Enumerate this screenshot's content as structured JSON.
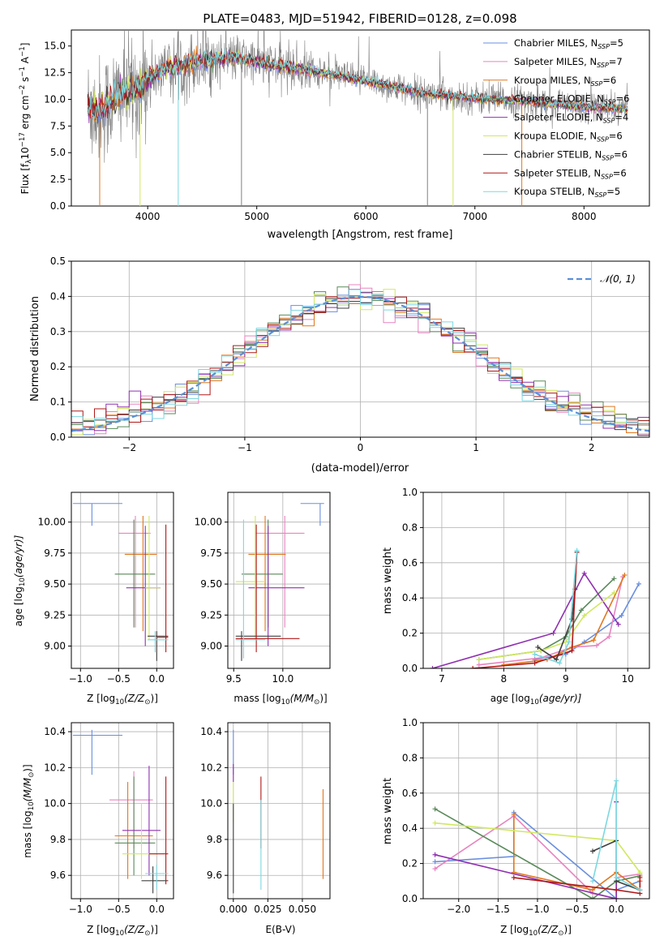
{
  "colors": {
    "cm": "#6a8fe0",
    "sm": "#e884c0",
    "km": "#e07820",
    "ce": "#5a8a5a",
    "se": "#9030b0",
    "ke": "#d0e860",
    "cs": "#404040",
    "ss": "#b01818",
    "ks": "#7cd8e0",
    "obs": "#808080",
    "gauss": "#5a8fd8"
  },
  "chart_data": [
    {
      "id": "spectrum",
      "type": "line",
      "title": "PLATE=0483, MJD=51942, FIBERID=0128, z=0.098",
      "xlabel": "wavelength [Angstrom, rest frame]",
      "ylabel_parts": [
        "Flux [f",
        "λ",
        "10",
        "−17",
        " erg cm",
        "−2",
        " s",
        "−1",
        " A",
        "−1",
        "]"
      ],
      "xlim": [
        3300,
        8600
      ],
      "ylim": [
        0,
        16.5
      ],
      "xticks": [
        4000,
        5000,
        6000,
        7000,
        8000
      ],
      "yticks": [
        0.0,
        2.5,
        5.0,
        7.5,
        10.0,
        12.5,
        15.0
      ],
      "ytick_labels": [
        "0.0",
        "2.5",
        "5.0",
        "7.5",
        "10.0",
        "12.5",
        "15.0"
      ],
      "continuum": [
        [
          3450,
          9.2
        ],
        [
          3550,
          8.8
        ],
        [
          3650,
          9.6
        ],
        [
          3750,
          10.6
        ],
        [
          3900,
          10.8
        ],
        [
          4000,
          12.0
        ],
        [
          4200,
          12.9
        ],
        [
          4500,
          13.7
        ],
        [
          4800,
          13.9
        ],
        [
          5100,
          13.3
        ],
        [
          5500,
          12.7
        ],
        [
          6000,
          11.7
        ],
        [
          6500,
          10.6
        ],
        [
          7000,
          10.1
        ],
        [
          7500,
          9.8
        ],
        [
          8000,
          9.3
        ],
        [
          8400,
          9.1
        ]
      ],
      "legend": [
        {
          "key": "cm",
          "label": "Chabrier MILES, N",
          "sub": "SSP",
          "val": "=5"
        },
        {
          "key": "sm",
          "label": "Salpeter MILES, N",
          "sub": "SSP",
          "val": "=7"
        },
        {
          "key": "km",
          "label": "Kroupa MILES, N",
          "sub": "SSP",
          "val": "=6"
        },
        {
          "key": "ce",
          "label": "Chabrier ELODIE, N",
          "sub": "SSP",
          "val": "=6"
        },
        {
          "key": "se",
          "label": "Salpeter ELODIE, N",
          "sub": "SSP",
          "val": "=4"
        },
        {
          "key": "ke",
          "label": "Kroupa ELODIE, N",
          "sub": "SSP",
          "val": "=6"
        },
        {
          "key": "cs",
          "label": "Chabrier STELIB, N",
          "sub": "SSP",
          "val": "=6"
        },
        {
          "key": "ss",
          "label": "Salpeter STELIB, N",
          "sub": "SSP",
          "val": "=6"
        },
        {
          "key": "ks",
          "label": "Kroupa STELIB, N",
          "sub": "SSP",
          "val": "=5"
        }
      ]
    },
    {
      "id": "residuals",
      "type": "step",
      "xlabel": "(data-model)/error",
      "ylabel": "Normed distribution",
      "xlim": [
        -2.5,
        2.5
      ],
      "ylim": [
        0,
        0.5
      ],
      "xticks": [
        -2,
        -1,
        0,
        1,
        2
      ],
      "xtick_labels": [
        "−2",
        "−1",
        "0",
        "1",
        "2"
      ],
      "yticks": [
        0.0,
        0.1,
        0.2,
        0.3,
        0.4,
        0.5
      ],
      "ytick_labels": [
        "0.0",
        "0.1",
        "0.2",
        "0.3",
        "0.4",
        "0.5"
      ],
      "bin_width": 0.1,
      "gaussian_label": "𝒩(0, 1)"
    },
    {
      "id": "age_vs_Z",
      "type": "errorbar",
      "xlabel_parts": [
        "Z [log",
        "10",
        "(Z/Z",
        "⊙",
        ")]"
      ],
      "ylabel_parts": [
        "age  [log",
        "10",
        "(age/yr)]"
      ],
      "xlim": [
        -1.12,
        0.22
      ],
      "ylim": [
        8.82,
        10.24
      ],
      "xticks": [
        -1.0,
        -0.5,
        0.0
      ],
      "xtick_labels": [
        "−1.0",
        "−0.5",
        "0.0"
      ],
      "yticks": [
        9.0,
        9.25,
        9.5,
        9.75,
        10.0
      ],
      "ytick_labels": [
        "9.00",
        "9.25",
        "9.50",
        "9.75",
        "10.00"
      ],
      "points": [
        {
          "c": "cm",
          "x": -0.85,
          "xlo": -1.1,
          "xhi": -0.45,
          "y": 10.15,
          "ylo": 9.97,
          "yhi": 10.15
        },
        {
          "c": "sm",
          "x": -0.28,
          "xlo": -0.5,
          "xhi": -0.08,
          "y": 9.91,
          "ylo": 9.15,
          "yhi": 10.05
        },
        {
          "c": "km",
          "x": -0.18,
          "xlo": -0.42,
          "xhi": 0.0,
          "y": 9.74,
          "ylo": 9.12,
          "yhi": 10.05
        },
        {
          "c": "ce",
          "x": -0.3,
          "xlo": -0.55,
          "xhi": -0.02,
          "y": 9.58,
          "ylo": 9.15,
          "yhi": 10.02
        },
        {
          "c": "se",
          "x": -0.15,
          "xlo": -0.4,
          "xhi": 0.05,
          "y": 9.47,
          "ylo": 9.0,
          "yhi": 9.97
        },
        {
          "c": "ke",
          "x": -0.1,
          "xlo": -0.15,
          "xhi": 0.05,
          "y": 9.47,
          "ylo": 9.05,
          "yhi": 10.05
        },
        {
          "c": "cs",
          "x": 0.0,
          "xlo": -0.12,
          "xhi": 0.15,
          "y": 9.08,
          "ylo": 8.88,
          "yhi": 9.12
        },
        {
          "c": "ss",
          "x": 0.12,
          "xlo": 0.0,
          "xhi": 0.15,
          "y": 9.07,
          "ylo": 8.95,
          "yhi": 9.98
        },
        {
          "c": "ks",
          "x": -0.02,
          "xlo": -0.12,
          "xhi": 0.15,
          "y": 9.05,
          "ylo": 8.95,
          "yhi": 9.12
        }
      ]
    },
    {
      "id": "age_vs_mass",
      "type": "errorbar",
      "xlabel_parts": [
        "mass [log",
        "10",
        "(M/M",
        "⊙",
        ")]"
      ],
      "xlim": [
        9.44,
        10.48
      ],
      "ylim": [
        8.82,
        10.24
      ],
      "xticks": [
        9.5,
        10.0
      ],
      "xtick_labels": [
        "9.5",
        "10.0"
      ],
      "yticks": [
        9.0,
        9.25,
        9.5,
        9.75,
        10.0
      ],
      "ytick_labels": [
        "9.00",
        "9.25",
        "9.50",
        "9.75",
        "10.00"
      ],
      "points": [
        {
          "c": "cm",
          "x": 10.38,
          "xlo": 10.18,
          "xhi": 10.42,
          "y": 10.15,
          "ylo": 9.97,
          "yhi": 10.15
        },
        {
          "c": "sm",
          "x": 10.02,
          "xlo": 9.72,
          "xhi": 10.22,
          "y": 9.91,
          "ylo": 9.15,
          "yhi": 10.05
        },
        {
          "c": "km",
          "x": 9.82,
          "xlo": 9.65,
          "xhi": 10.03,
          "y": 9.74,
          "ylo": 9.12,
          "yhi": 10.05
        },
        {
          "c": "ce",
          "x": 9.85,
          "xlo": 9.58,
          "xhi": 10.0,
          "y": 9.58,
          "ylo": 9.15,
          "yhi": 10.02
        },
        {
          "c": "se",
          "x": 9.85,
          "xlo": 9.65,
          "xhi": 10.22,
          "y": 9.47,
          "ylo": 9.0,
          "yhi": 9.97
        },
        {
          "c": "ke",
          "x": 9.72,
          "xlo": 9.52,
          "xhi": 9.82,
          "y": 9.52,
          "ylo": 9.05,
          "yhi": 10.05
        },
        {
          "c": "cs",
          "x": 9.58,
          "xlo": 9.52,
          "xhi": 9.98,
          "y": 9.08,
          "ylo": 8.88,
          "yhi": 9.12
        },
        {
          "c": "ss",
          "x": 9.73,
          "xlo": 9.52,
          "xhi": 10.17,
          "y": 9.06,
          "ylo": 8.95,
          "yhi": 9.98
        },
        {
          "c": "ks",
          "x": 9.6,
          "xlo": 9.52,
          "xhi": 9.82,
          "y": 9.05,
          "ylo": 8.9,
          "yhi": 10.02
        }
      ]
    },
    {
      "id": "weight_vs_age",
      "type": "line",
      "xlabel_parts": [
        "age  [log",
        "10",
        "(age/yr)]"
      ],
      "ylabel": "mass weight",
      "xlim": [
        6.7,
        10.35
      ],
      "ylim": [
        0,
        1
      ],
      "xticks": [
        7,
        8,
        9,
        10
      ],
      "xtick_labels": [
        "7",
        "8",
        "9",
        "10"
      ],
      "yticks": [
        0.0,
        0.2,
        0.4,
        0.6,
        0.8,
        1.0
      ],
      "ytick_labels": [
        "0.0",
        "0.2",
        "0.4",
        "0.6",
        "0.8",
        "1.0"
      ],
      "series": [
        {
          "c": "cm",
          "x": [
            8.5,
            9.0,
            9.3,
            9.9,
            10.18
          ],
          "y": [
            0.05,
            0.08,
            0.15,
            0.3,
            0.48
          ]
        },
        {
          "c": "sm",
          "x": [
            7.6,
            8.6,
            9.1,
            9.5,
            9.7,
            9.92
          ],
          "y": [
            0.02,
            0.06,
            0.12,
            0.13,
            0.18,
            0.52
          ]
        },
        {
          "c": "km",
          "x": [
            8.0,
            8.7,
            9.1,
            9.45,
            9.95
          ],
          "y": [
            0.02,
            0.05,
            0.12,
            0.16,
            0.53
          ]
        },
        {
          "c": "ce",
          "x": [
            7.6,
            8.6,
            9.0,
            9.25,
            9.78
          ],
          "y": [
            0.05,
            0.1,
            0.18,
            0.33,
            0.51
          ]
        },
        {
          "c": "se",
          "x": [
            6.85,
            8.8,
            9.3,
            9.85
          ],
          "y": [
            0.0,
            0.2,
            0.54,
            0.25
          ]
        },
        {
          "c": "ke",
          "x": [
            7.6,
            8.6,
            9.0,
            9.3,
            9.78
          ],
          "y": [
            0.05,
            0.1,
            0.15,
            0.3,
            0.43
          ]
        },
        {
          "c": "cs",
          "x": [
            8.55,
            8.85,
            9.1,
            9.15
          ],
          "y": [
            0.12,
            0.05,
            0.28,
            0.45
          ]
        },
        {
          "c": "ss",
          "x": [
            7.5,
            8.5,
            9.1,
            9.18
          ],
          "y": [
            0.0,
            0.03,
            0.1,
            0.66
          ]
        },
        {
          "c": "ks",
          "x": [
            8.5,
            8.9,
            9.05,
            9.18
          ],
          "y": [
            0.08,
            0.03,
            0.15,
            0.67
          ]
        }
      ]
    },
    {
      "id": "mass_vs_Z",
      "type": "errorbar",
      "xlabel_parts": [
        "Z [log",
        "10",
        "(Z/Z",
        "⊙",
        ")]"
      ],
      "ylabel_parts": [
        "mass [log",
        "10",
        "(M/M",
        "⊙",
        ")]"
      ],
      "xlim": [
        -1.12,
        0.22
      ],
      "ylim": [
        9.47,
        10.45
      ],
      "xticks": [
        -1.0,
        -0.5,
        0.0
      ],
      "xtick_labels": [
        "−1.0",
        "−0.5",
        "0.0"
      ],
      "yticks": [
        9.6,
        9.8,
        10.0,
        10.2,
        10.4
      ],
      "ytick_labels": [
        "9.6",
        "9.8",
        "10.0",
        "10.2",
        "10.4"
      ],
      "points": [
        {
          "c": "cm",
          "x": -0.85,
          "xlo": -1.1,
          "xhi": -0.45,
          "y": 10.38,
          "ylo": 10.16,
          "yhi": 10.41
        },
        {
          "c": "sm",
          "x": -0.3,
          "xlo": -0.62,
          "xhi": -0.05,
          "y": 10.02,
          "ylo": 9.75,
          "yhi": 10.18
        },
        {
          "c": "km",
          "x": -0.38,
          "xlo": -0.55,
          "xhi": -0.05,
          "y": 9.82,
          "ylo": 9.58,
          "yhi": 10.12
        },
        {
          "c": "ce",
          "x": -0.3,
          "xlo": -0.55,
          "xhi": -0.02,
          "y": 9.78,
          "ylo": 9.6,
          "yhi": 10.15
        },
        {
          "c": "se",
          "x": -0.1,
          "xlo": -0.45,
          "xhi": 0.05,
          "y": 9.85,
          "ylo": 9.6,
          "yhi": 10.21
        },
        {
          "c": "ke",
          "x": -0.2,
          "xlo": -0.45,
          "xhi": 0.0,
          "y": 9.72,
          "ylo": 9.58,
          "yhi": 10.0
        },
        {
          "c": "cs",
          "x": -0.05,
          "xlo": -0.2,
          "xhi": 0.15,
          "y": 9.57,
          "ylo": 9.5,
          "yhi": 9.65
        },
        {
          "c": "ss",
          "x": 0.12,
          "xlo": -0.1,
          "xhi": 0.15,
          "y": 9.72,
          "ylo": 9.55,
          "yhi": 10.15
        },
        {
          "c": "ks",
          "x": 0.0,
          "xlo": -0.15,
          "xhi": 0.15,
          "y": 9.61,
          "ylo": 9.52,
          "yhi": 9.66
        }
      ]
    },
    {
      "id": "mass_vs_EBV",
      "type": "errorbar",
      "xlabel": "E(B-V)",
      "xlim": [
        -0.004,
        0.07
      ],
      "ylim": [
        9.47,
        10.45
      ],
      "xticks": [
        0.0,
        0.025,
        0.05
      ],
      "xtick_labels": [
        "0.000",
        "0.025",
        "0.050"
      ],
      "yticks": [
        9.6,
        9.8,
        10.0,
        10.2,
        10.4
      ],
      "ytick_labels": [
        "9.6",
        "9.8",
        "10.0",
        "10.2",
        "10.4"
      ],
      "points": [
        {
          "c": "cm",
          "x": 0.0,
          "y": 10.38,
          "ylo": 10.16,
          "yhi": 10.41
        },
        {
          "c": "se",
          "x": 0.0,
          "y": 10.2,
          "ylo": 10.12,
          "yhi": 10.22
        },
        {
          "c": "ke",
          "x": 0.0,
          "y": 10.0,
          "ylo": 9.9,
          "yhi": 10.12
        },
        {
          "c": "cs",
          "x": 0.0,
          "y": 9.78,
          "ylo": 9.5,
          "yhi": 10.0
        },
        {
          "c": "ss",
          "x": 0.02,
          "y": 10.02,
          "ylo": 9.75,
          "yhi": 10.15
        },
        {
          "c": "ks",
          "x": 0.02,
          "y": 9.75,
          "ylo": 9.52,
          "yhi": 10.02
        },
        {
          "c": "km",
          "x": 0.065,
          "y": 9.82,
          "ylo": 9.58,
          "yhi": 10.08
        }
      ]
    },
    {
      "id": "weight_vs_Z",
      "type": "line",
      "xlabel_parts": [
        "Z [log",
        "10",
        "(Z/Z",
        "⊙",
        ")]"
      ],
      "ylabel": "mass weight",
      "xlim": [
        -2.45,
        0.42
      ],
      "ylim": [
        0,
        1
      ],
      "xticks": [
        -2.0,
        -1.5,
        -1.0,
        -0.5,
        0.0
      ],
      "xtick_labels": [
        "−2.0",
        "−1.5",
        "−1.0",
        "−0.5",
        "0.0"
      ],
      "yticks": [
        0.0,
        0.2,
        0.4,
        0.6,
        0.8,
        1.0
      ],
      "ytick_labels": [
        "0.0",
        "0.2",
        "0.4",
        "0.6",
        "0.8",
        "1.0"
      ],
      "series": [
        {
          "c": "cm",
          "x": [
            -2.3,
            -1.3,
            -1.3,
            0.0,
            0.0,
            0.3
          ],
          "y": [
            0.21,
            0.24,
            0.49,
            0.0,
            0.05,
            0.1
          ]
        },
        {
          "c": "sm",
          "x": [
            -2.3,
            -1.3,
            -0.3,
            0.0,
            0.0,
            0.3
          ],
          "y": [
            0.17,
            0.47,
            0.03,
            0.0,
            0.12,
            0.14
          ]
        },
        {
          "c": "km",
          "x": [
            -1.3,
            -1.3,
            -0.3,
            0.0,
            0.3,
            0.3
          ],
          "y": [
            0.48,
            0.15,
            0.05,
            0.15,
            0.05,
            0.1
          ]
        },
        {
          "c": "ce",
          "x": [
            -2.3,
            -0.3,
            0.0,
            0.3
          ],
          "y": [
            0.51,
            0.0,
            0.1,
            0.13
          ]
        },
        {
          "c": "se",
          "x": [
            -2.3,
            0.0,
            0.0
          ],
          "y": [
            0.25,
            0.0,
            0.55
          ]
        },
        {
          "c": "ke",
          "x": [
            -2.3,
            0.0,
            0.3
          ],
          "y": [
            0.43,
            0.33,
            0.15
          ]
        },
        {
          "c": "cs",
          "x": [
            -0.3,
            0.0,
            0.0,
            0.3
          ],
          "y": [
            0.27,
            0.33,
            0.1,
            0.05
          ]
        },
        {
          "c": "ss",
          "x": [
            -1.3,
            0.0,
            0.3,
            0.3
          ],
          "y": [
            0.12,
            0.05,
            0.03,
            0.12
          ]
        },
        {
          "c": "ks",
          "x": [
            -0.3,
            0.0,
            0.0,
            0.3
          ],
          "y": [
            0.1,
            0.67,
            0.12,
            0.05
          ]
        }
      ]
    }
  ]
}
